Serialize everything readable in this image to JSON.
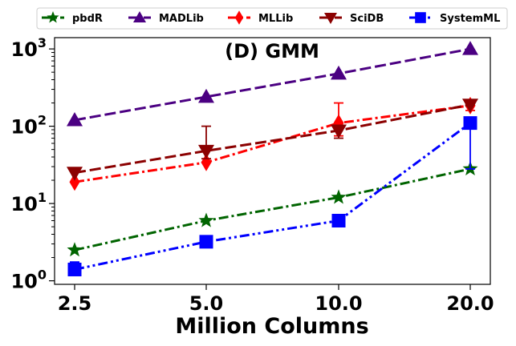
{
  "chart_data": {
    "type": "line",
    "title": "(D) GMM",
    "xlabel": "Million Columns",
    "ylabel": "",
    "x_categories": [
      "2.5",
      "5.0",
      "10.0",
      "20.0"
    ],
    "y_scale": "log",
    "ylim": [
      0.9,
      1400
    ],
    "y_ticks": [
      1,
      10,
      100,
      1000
    ],
    "y_tick_labels": [
      {
        "base": "10",
        "exp": "0"
      },
      {
        "base": "10",
        "exp": "1"
      },
      {
        "base": "10",
        "exp": "2"
      },
      {
        "base": "10",
        "exp": "3"
      }
    ],
    "legend_position": "top, above plot",
    "series": [
      {
        "name": "pbdR",
        "color": "#006400",
        "dash": "dashdot",
        "marker": "star",
        "values": [
          2.5,
          6.0,
          12.0,
          28.0
        ],
        "err_low": [
          null,
          null,
          null,
          null
        ],
        "err_high": [
          null,
          null,
          null,
          null
        ]
      },
      {
        "name": "MADLib",
        "color": "#4b0082",
        "dash": "dashed",
        "marker": "triangle-up",
        "values": [
          120,
          240,
          480,
          1000
        ],
        "err_low": [
          null,
          null,
          null,
          null
        ],
        "err_high": [
          null,
          null,
          null,
          null
        ]
      },
      {
        "name": "MLLib",
        "color": "#ff0000",
        "dash": "dashdot",
        "marker": "thin-diamond",
        "values": [
          19,
          34,
          110,
          185
        ],
        "err_low": [
          null,
          null,
          75,
          160
        ],
        "err_high": [
          null,
          null,
          200,
          220
        ]
      },
      {
        "name": "SciDB",
        "color": "#8b0000",
        "dash": "dashed",
        "marker": "triangle-down",
        "values": [
          25,
          48,
          88,
          190
        ],
        "err_low": [
          null,
          38,
          70,
          null
        ],
        "err_high": [
          null,
          100,
          null,
          null
        ]
      },
      {
        "name": "SystemML",
        "color": "#0000ff",
        "dash": "dashdotdot",
        "marker": "square",
        "values": [
          1.4,
          3.2,
          6.0,
          110
        ],
        "err_low": [
          null,
          null,
          null,
          28
        ],
        "err_high": [
          1.75,
          null,
          null,
          null
        ]
      }
    ]
  }
}
